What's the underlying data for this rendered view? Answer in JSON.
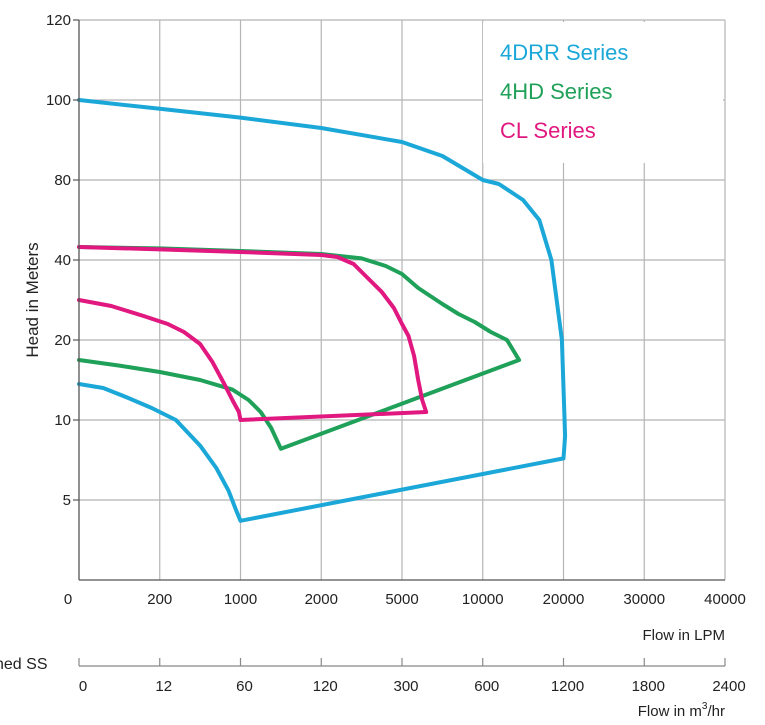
{
  "chart_data": {
    "type": "line",
    "ylabel": "Head in Meters",
    "xlabel": "Flow in LPM",
    "x2label_main": "Flow in m",
    "x2label_sup": "3",
    "x2label_tail": "/hr",
    "cut_label": "ned SS",
    "x_ticks": [
      "0",
      "200",
      "1000",
      "2000",
      "5000",
      "10000",
      "20000",
      "30000",
      "40000"
    ],
    "x2_ticks": [
      "0",
      "12",
      "60",
      "120",
      "300",
      "600",
      "1200",
      "1800",
      "2400"
    ],
    "y_ticks": [
      "5",
      "10",
      "20",
      "40",
      "80",
      "100",
      "120"
    ],
    "grid": true,
    "legend_position": "top-right",
    "series": [
      {
        "name": "4DRR Series",
        "color": "#1BA8D8",
        "points": [
          [
            0,
            14.5
          ],
          [
            0.3,
            14.0
          ],
          [
            0.6,
            12.8
          ],
          [
            0.9,
            11.5
          ],
          [
            1.2,
            10.0
          ],
          [
            1.5,
            8.4
          ],
          [
            1.7,
            7.0
          ],
          [
            1.85,
            5.6
          ],
          [
            1.95,
            4.3
          ],
          [
            2.0,
            3.7
          ],
          [
            6.0,
            7.6
          ],
          [
            6.02,
            9
          ],
          [
            5.98,
            20
          ],
          [
            5.85,
            40
          ],
          [
            5.7,
            60
          ],
          [
            5.5,
            70
          ],
          [
            5.2,
            78
          ],
          [
            5.0,
            80
          ],
          [
            4.5,
            86
          ],
          [
            4.0,
            89.5
          ],
          [
            3.0,
            93
          ],
          [
            2.0,
            95.6
          ],
          [
            1.0,
            97.8
          ],
          [
            0,
            100
          ]
        ]
      },
      {
        "name": "4HD Series",
        "color": "#1FA15A",
        "points": [
          [
            0,
            17.5
          ],
          [
            0.5,
            16.8
          ],
          [
            1.0,
            16.0
          ],
          [
            1.5,
            15.0
          ],
          [
            1.9,
            13.8
          ],
          [
            2.1,
            12.5
          ],
          [
            2.25,
            11.0
          ],
          [
            2.38,
            9.5
          ],
          [
            2.5,
            8.2
          ],
          [
            5.45,
            17.5
          ],
          [
            5.3,
            20
          ],
          [
            5.1,
            22
          ],
          [
            4.9,
            24.5
          ],
          [
            4.7,
            26.5
          ],
          [
            4.5,
            29
          ],
          [
            4.2,
            33
          ],
          [
            4.0,
            36.5
          ],
          [
            3.8,
            38.5
          ],
          [
            3.5,
            40.8
          ],
          [
            3.0,
            43
          ],
          [
            2.0,
            44.5
          ],
          [
            1.0,
            45.8
          ],
          [
            0,
            46.5
          ]
        ]
      },
      {
        "name": "CL Series",
        "color": "#E0187F",
        "points": [
          [
            0,
            30
          ],
          [
            0.4,
            28.5
          ],
          [
            0.8,
            26
          ],
          [
            1.1,
            24
          ],
          [
            1.3,
            22
          ],
          [
            1.5,
            19.5
          ],
          [
            1.65,
            17.3
          ],
          [
            1.8,
            14.5
          ],
          [
            1.9,
            12.5
          ],
          [
            1.98,
            11
          ],
          [
            2.0,
            10
          ],
          [
            4.3,
            11.0
          ],
          [
            4.25,
            12.5
          ],
          [
            4.2,
            15
          ],
          [
            4.15,
            18
          ],
          [
            4.08,
            21
          ],
          [
            4.0,
            24
          ],
          [
            3.9,
            28
          ],
          [
            3.75,
            32
          ],
          [
            3.6,
            35
          ],
          [
            3.4,
            39
          ],
          [
            3.2,
            41.5
          ],
          [
            3.0,
            42.5
          ],
          [
            2.0,
            44.0
          ],
          [
            1.0,
            45.3
          ],
          [
            0,
            46.5
          ]
        ]
      }
    ]
  }
}
